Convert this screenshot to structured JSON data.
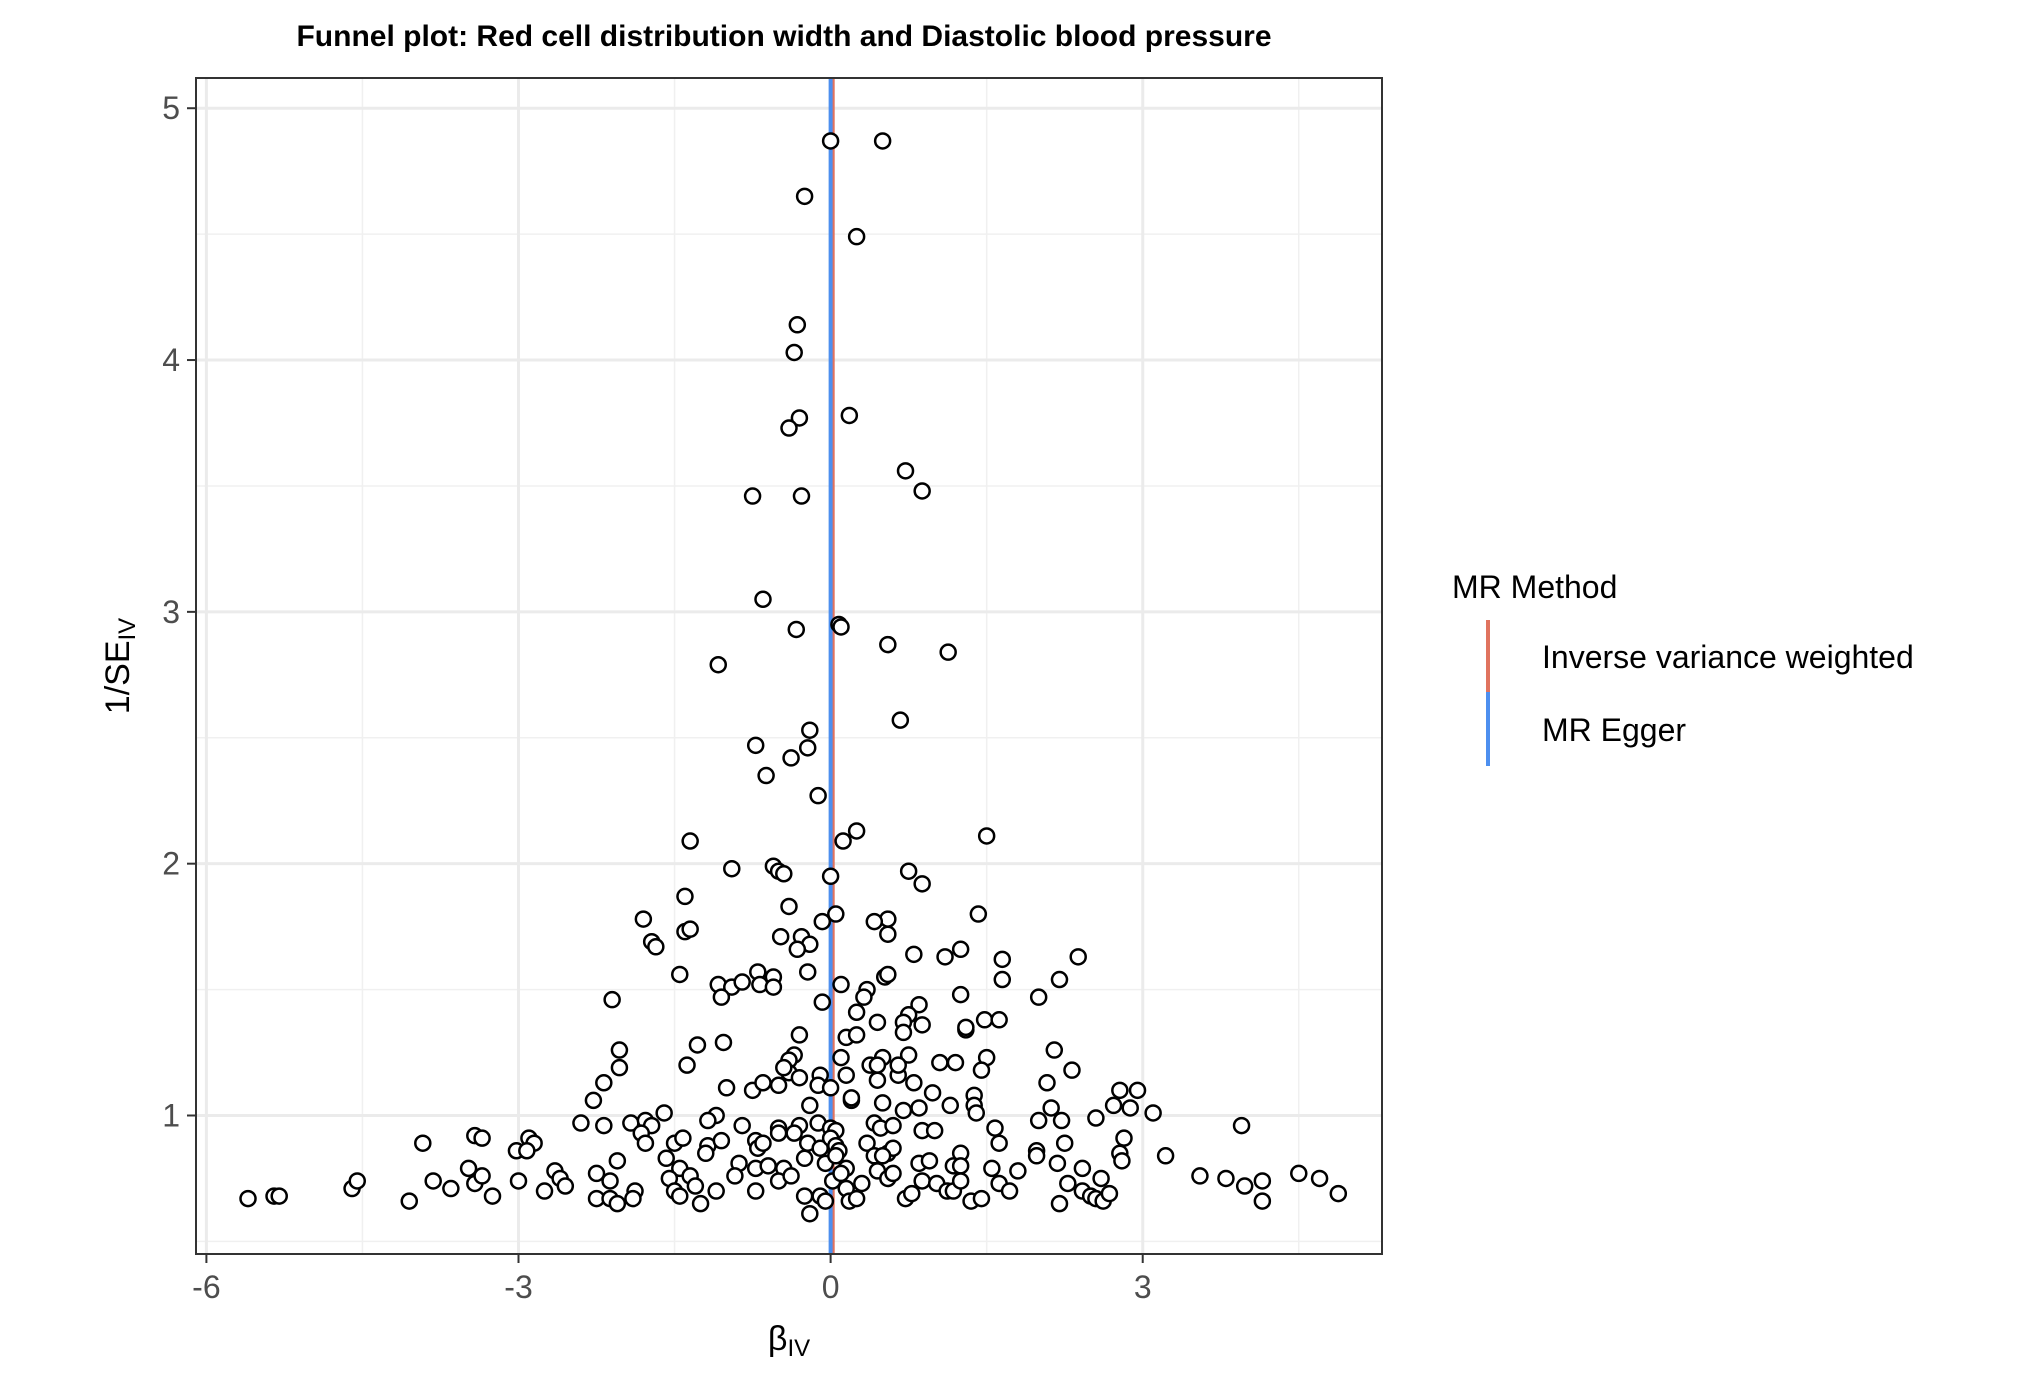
{
  "chart_data": {
    "type": "scatter",
    "title": "Funnel plot: Red cell distribution width and Diastolic blood pressure",
    "xlabel": "βIV",
    "ylabel": "1/SEIV",
    "xlim": [
      -6.1,
      5.3
    ],
    "ylim": [
      0.45,
      5.12
    ],
    "x_ticks": [
      -6,
      -3,
      0,
      3
    ],
    "x_tick_labels": [
      "-6",
      "-3",
      "0",
      "3"
    ],
    "y_ticks": [
      1,
      2,
      3,
      4,
      5
    ],
    "y_tick_labels": [
      "1",
      "2",
      "3",
      "4",
      "5"
    ],
    "grid": true,
    "legend": {
      "title": "MR Method",
      "position": "right",
      "entries": [
        {
          "label": "Inverse variance weighted",
          "color": "#e0735f"
        },
        {
          "label": "MR Egger",
          "color": "#4d8fef"
        }
      ]
    },
    "vlines": [
      {
        "method": "Inverse variance weighted",
        "x": 0.02,
        "color": "#e0735f"
      },
      {
        "method": "MR Egger",
        "x": 0.0,
        "color": "#4d8fef"
      }
    ],
    "points": [
      [
        0.0,
        4.87
      ],
      [
        0.5,
        4.87
      ],
      [
        -0.25,
        4.65
      ],
      [
        0.25,
        4.49
      ],
      [
        -0.32,
        4.14
      ],
      [
        -0.35,
        4.03
      ],
      [
        -0.3,
        3.77
      ],
      [
        0.18,
        3.78
      ],
      [
        -0.4,
        3.73
      ],
      [
        0.72,
        3.56
      ],
      [
        0.88,
        3.48
      ],
      [
        -0.75,
        3.46
      ],
      [
        -0.28,
        3.46
      ],
      [
        -0.65,
        3.05
      ],
      [
        0.08,
        2.95
      ],
      [
        0.1,
        2.94
      ],
      [
        -0.33,
        2.93
      ],
      [
        0.55,
        2.87
      ],
      [
        1.13,
        2.84
      ],
      [
        -1.08,
        2.79
      ],
      [
        0.67,
        2.57
      ],
      [
        -0.2,
        2.53
      ],
      [
        -0.72,
        2.47
      ],
      [
        -0.22,
        2.46
      ],
      [
        -0.38,
        2.42
      ],
      [
        -0.62,
        2.35
      ],
      [
        -0.12,
        2.27
      ],
      [
        -1.35,
        2.09
      ],
      [
        0.25,
        2.13
      ],
      [
        0.12,
        2.09
      ],
      [
        1.5,
        2.11
      ],
      [
        -0.95,
        1.98
      ],
      [
        -0.55,
        1.99
      ],
      [
        -0.5,
        1.97
      ],
      [
        -0.45,
        1.96
      ],
      [
        0.0,
        1.95
      ],
      [
        0.75,
        1.97
      ],
      [
        0.88,
        1.92
      ],
      [
        -1.4,
        1.87
      ],
      [
        -0.4,
        1.83
      ],
      [
        0.05,
        1.8
      ],
      [
        -0.08,
        1.77
      ],
      [
        1.42,
        1.8
      ],
      [
        -1.8,
        1.78
      ],
      [
        0.55,
        1.78
      ],
      [
        0.42,
        1.77
      ],
      [
        -1.4,
        1.73
      ],
      [
        -1.35,
        1.74
      ],
      [
        -0.48,
        1.71
      ],
      [
        -0.28,
        1.71
      ],
      [
        -0.2,
        1.68
      ],
      [
        -0.32,
        1.66
      ],
      [
        0.55,
        1.72
      ],
      [
        -1.72,
        1.69
      ],
      [
        -1.68,
        1.67
      ],
      [
        0.8,
        1.64
      ],
      [
        1.1,
        1.63
      ],
      [
        1.25,
        1.66
      ],
      [
        1.65,
        1.62
      ],
      [
        2.38,
        1.63
      ],
      [
        -1.45,
        1.56
      ],
      [
        -1.08,
        1.52
      ],
      [
        -0.95,
        1.51
      ],
      [
        -0.85,
        1.53
      ],
      [
        -0.7,
        1.57
      ],
      [
        -0.55,
        1.55
      ],
      [
        -0.68,
        1.52
      ],
      [
        -0.55,
        1.51
      ],
      [
        -0.22,
        1.57
      ],
      [
        0.1,
        1.52
      ],
      [
        0.35,
        1.5
      ],
      [
        0.32,
        1.47
      ],
      [
        0.52,
        1.55
      ],
      [
        0.55,
        1.56
      ],
      [
        -0.08,
        1.45
      ],
      [
        1.25,
        1.48
      ],
      [
        1.65,
        1.54
      ],
      [
        2.0,
        1.47
      ],
      [
        2.2,
        1.54
      ],
      [
        -1.05,
        1.47
      ],
      [
        -2.1,
        1.46
      ],
      [
        0.25,
        1.41
      ],
      [
        0.85,
        1.44
      ],
      [
        0.75,
        1.4
      ],
      [
        0.7,
        1.37
      ],
      [
        0.45,
        1.37
      ],
      [
        0.88,
        1.36
      ],
      [
        1.3,
        1.34
      ],
      [
        1.3,
        1.35
      ],
      [
        1.48,
        1.38
      ],
      [
        1.62,
        1.38
      ],
      [
        -0.3,
        1.32
      ],
      [
        0.15,
        1.31
      ],
      [
        0.25,
        1.32
      ],
      [
        0.7,
        1.33
      ],
      [
        -2.03,
        1.26
      ],
      [
        -1.28,
        1.28
      ],
      [
        -1.03,
        1.29
      ],
      [
        0.1,
        1.23
      ],
      [
        -0.35,
        1.24
      ],
      [
        -0.4,
        1.22
      ],
      [
        0.5,
        1.23
      ],
      [
        0.75,
        1.24
      ],
      [
        1.5,
        1.23
      ],
      [
        2.15,
        1.26
      ],
      [
        -2.03,
        1.19
      ],
      [
        -1.38,
        1.2
      ],
      [
        -0.4,
        1.17
      ],
      [
        -0.45,
        1.19
      ],
      [
        -0.3,
        1.15
      ],
      [
        -0.1,
        1.16
      ],
      [
        0.15,
        1.16
      ],
      [
        0.38,
        1.2
      ],
      [
        0.45,
        1.2
      ],
      [
        0.65,
        1.16
      ],
      [
        0.65,
        1.2
      ],
      [
        1.05,
        1.21
      ],
      [
        1.2,
        1.21
      ],
      [
        1.45,
        1.18
      ],
      [
        2.32,
        1.18
      ],
      [
        -2.18,
        1.13
      ],
      [
        -1.0,
        1.11
      ],
      [
        -0.75,
        1.1
      ],
      [
        -0.65,
        1.13
      ],
      [
        -0.5,
        1.12
      ],
      [
        -0.12,
        1.12
      ],
      [
        0.0,
        1.11
      ],
      [
        0.45,
        1.14
      ],
      [
        0.8,
        1.13
      ],
      [
        0.98,
        1.09
      ],
      [
        1.38,
        1.08
      ],
      [
        2.08,
        1.13
      ],
      [
        2.78,
        1.1
      ],
      [
        2.95,
        1.1
      ],
      [
        -2.28,
        1.06
      ],
      [
        -1.6,
        1.01
      ],
      [
        -1.1,
        1.0
      ],
      [
        -0.2,
        1.04
      ],
      [
        0.2,
        1.06
      ],
      [
        0.2,
        1.07
      ],
      [
        0.5,
        1.05
      ],
      [
        0.7,
        1.02
      ],
      [
        0.85,
        1.03
      ],
      [
        1.15,
        1.04
      ],
      [
        1.38,
        1.04
      ],
      [
        1.4,
        1.01
      ],
      [
        2.12,
        1.03
      ],
      [
        2.55,
        0.99
      ],
      [
        2.72,
        1.04
      ],
      [
        2.88,
        1.03
      ],
      [
        3.1,
        1.01
      ],
      [
        -2.4,
        0.97
      ],
      [
        -2.18,
        0.96
      ],
      [
        -1.92,
        0.97
      ],
      [
        -1.78,
        0.98
      ],
      [
        -1.72,
        0.96
      ],
      [
        -1.18,
        0.98
      ],
      [
        -0.85,
        0.96
      ],
      [
        -0.5,
        0.95
      ],
      [
        -0.3,
        0.96
      ],
      [
        -0.12,
        0.97
      ],
      [
        0.0,
        0.95
      ],
      [
        0.05,
        0.94
      ],
      [
        0.42,
        0.97
      ],
      [
        0.48,
        0.95
      ],
      [
        0.6,
        0.96
      ],
      [
        0.88,
        0.94
      ],
      [
        1.0,
        0.94
      ],
      [
        1.58,
        0.95
      ],
      [
        2.0,
        0.98
      ],
      [
        2.22,
        0.98
      ],
      [
        3.95,
        0.96
      ],
      [
        -3.92,
        0.89
      ],
      [
        -3.42,
        0.92
      ],
      [
        -3.35,
        0.91
      ],
      [
        -2.9,
        0.91
      ],
      [
        -2.85,
        0.89
      ],
      [
        -1.82,
        0.93
      ],
      [
        -1.78,
        0.89
      ],
      [
        -1.5,
        0.89
      ],
      [
        -1.42,
        0.91
      ],
      [
        -1.18,
        0.88
      ],
      [
        -1.05,
        0.9
      ],
      [
        -0.72,
        0.9
      ],
      [
        -0.7,
        0.87
      ],
      [
        -0.65,
        0.89
      ],
      [
        -0.5,
        0.93
      ],
      [
        -0.35,
        0.93
      ],
      [
        -0.22,
        0.89
      ],
      [
        -0.1,
        0.87
      ],
      [
        0.0,
        0.91
      ],
      [
        0.05,
        0.88
      ],
      [
        0.08,
        0.86
      ],
      [
        0.35,
        0.89
      ],
      [
        0.55,
        0.85
      ],
      [
        0.6,
        0.87
      ],
      [
        1.25,
        0.85
      ],
      [
        1.62,
        0.89
      ],
      [
        1.98,
        0.86
      ],
      [
        2.25,
        0.89
      ],
      [
        2.78,
        0.85
      ],
      [
        2.82,
        0.91
      ],
      [
        3.22,
        0.84
      ],
      [
        -3.02,
        0.86
      ],
      [
        -2.92,
        0.86
      ],
      [
        -2.05,
        0.82
      ],
      [
        -1.58,
        0.83
      ],
      [
        -1.45,
        0.79
      ],
      [
        -1.2,
        0.85
      ],
      [
        -0.88,
        0.81
      ],
      [
        -0.72,
        0.79
      ],
      [
        -0.6,
        0.8
      ],
      [
        -0.45,
        0.79
      ],
      [
        -0.25,
        0.83
      ],
      [
        -0.05,
        0.81
      ],
      [
        0.05,
        0.84
      ],
      [
        0.15,
        0.79
      ],
      [
        0.42,
        0.84
      ],
      [
        0.5,
        0.84
      ],
      [
        0.85,
        0.81
      ],
      [
        0.95,
        0.82
      ],
      [
        1.18,
        0.8
      ],
      [
        1.25,
        0.8
      ],
      [
        1.55,
        0.79
      ],
      [
        1.8,
        0.78
      ],
      [
        2.18,
        0.81
      ],
      [
        2.42,
        0.79
      ],
      [
        2.8,
        0.82
      ],
      [
        -5.6,
        0.67
      ],
      [
        -5.35,
        0.68
      ],
      [
        -5.3,
        0.68
      ],
      [
        -4.6,
        0.71
      ],
      [
        -4.55,
        0.74
      ],
      [
        -4.05,
        0.66
      ],
      [
        -3.82,
        0.74
      ],
      [
        -3.65,
        0.71
      ],
      [
        -3.48,
        0.79
      ],
      [
        -3.42,
        0.73
      ],
      [
        -3.35,
        0.76
      ],
      [
        -3.25,
        0.68
      ],
      [
        -3.0,
        0.74
      ],
      [
        -2.75,
        0.7
      ],
      [
        -2.65,
        0.78
      ],
      [
        -2.6,
        0.75
      ],
      [
        -2.55,
        0.72
      ],
      [
        -2.25,
        0.77
      ],
      [
        -2.25,
        0.67
      ],
      [
        -2.12,
        0.67
      ],
      [
        -2.12,
        0.74
      ],
      [
        -2.05,
        0.65
      ],
      [
        -1.88,
        0.7
      ],
      [
        -1.9,
        0.67
      ],
      [
        -1.55,
        0.75
      ],
      [
        -1.5,
        0.7
      ],
      [
        -1.45,
        0.68
      ],
      [
        -1.35,
        0.76
      ],
      [
        -1.3,
        0.72
      ],
      [
        -1.25,
        0.65
      ],
      [
        -1.1,
        0.7
      ],
      [
        -0.92,
        0.76
      ],
      [
        -0.72,
        0.7
      ],
      [
        -0.5,
        0.74
      ],
      [
        -0.38,
        0.76
      ],
      [
        -0.25,
        0.68
      ],
      [
        -0.2,
        0.61
      ],
      [
        -0.1,
        0.68
      ],
      [
        -0.05,
        0.66
      ],
      [
        0.02,
        0.74
      ],
      [
        0.1,
        0.77
      ],
      [
        0.15,
        0.71
      ],
      [
        0.18,
        0.66
      ],
      [
        0.25,
        0.67
      ],
      [
        0.3,
        0.73
      ],
      [
        0.45,
        0.78
      ],
      [
        0.55,
        0.75
      ],
      [
        0.6,
        0.77
      ],
      [
        0.72,
        0.67
      ],
      [
        0.78,
        0.69
      ],
      [
        0.88,
        0.74
      ],
      [
        1.02,
        0.73
      ],
      [
        1.12,
        0.7
      ],
      [
        1.18,
        0.7
      ],
      [
        1.25,
        0.74
      ],
      [
        1.35,
        0.66
      ],
      [
        1.45,
        0.67
      ],
      [
        1.62,
        0.73
      ],
      [
        1.72,
        0.7
      ],
      [
        1.98,
        0.84
      ],
      [
        2.2,
        0.65
      ],
      [
        2.28,
        0.73
      ],
      [
        2.42,
        0.7
      ],
      [
        2.5,
        0.68
      ],
      [
        2.55,
        0.67
      ],
      [
        2.6,
        0.75
      ],
      [
        2.62,
        0.66
      ],
      [
        2.68,
        0.69
      ],
      [
        3.55,
        0.76
      ],
      [
        3.8,
        0.75
      ],
      [
        3.98,
        0.72
      ],
      [
        4.15,
        0.74
      ],
      [
        4.15,
        0.66
      ],
      [
        4.5,
        0.77
      ],
      [
        4.7,
        0.75
      ],
      [
        4.88,
        0.69
      ]
    ]
  }
}
